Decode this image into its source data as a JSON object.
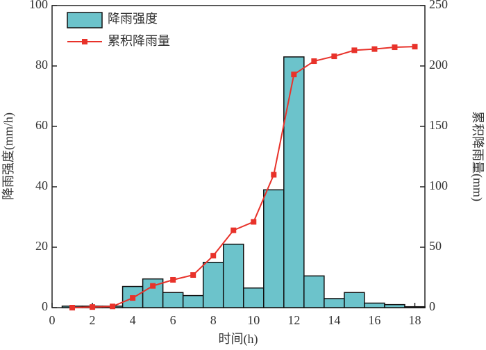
{
  "chart_data": {
    "type": "bar",
    "x": [
      1,
      2,
      3,
      4,
      5,
      6,
      7,
      8,
      9,
      10,
      11,
      12,
      13,
      14,
      15,
      16,
      17,
      18
    ],
    "series": [
      {
        "name": "降雨强度",
        "type": "bar",
        "color": "#6cc3cb",
        "values": [
          0.5,
          0.5,
          0.5,
          7,
          9.5,
          5,
          4,
          15,
          21,
          6.5,
          39,
          83,
          10.5,
          3,
          5,
          1.5,
          1,
          0.3
        ]
      },
      {
        "name": "累积降雨量",
        "type": "line",
        "axis": "y2",
        "color": "#e8322a",
        "values": [
          0,
          0.5,
          1,
          8,
          18,
          23,
          27,
          43,
          64,
          71,
          110,
          193,
          204,
          208,
          213,
          214,
          215.5,
          216
        ]
      }
    ],
    "xlabel": "时间(h)",
    "ylabel": "降雨强度(mm/h)",
    "y2label": "累积降雨量(mm)",
    "xlim": [
      0,
      18.5
    ],
    "xticks": [
      0,
      2,
      4,
      6,
      8,
      10,
      12,
      14,
      16,
      18
    ],
    "ylim": [
      0,
      100
    ],
    "yticks": [
      0,
      20,
      40,
      60,
      80,
      100
    ],
    "y2lim": [
      0,
      250
    ],
    "y2ticks": [
      0,
      50,
      100,
      150,
      200,
      250
    ],
    "legend": "upper left",
    "grid": false
  }
}
